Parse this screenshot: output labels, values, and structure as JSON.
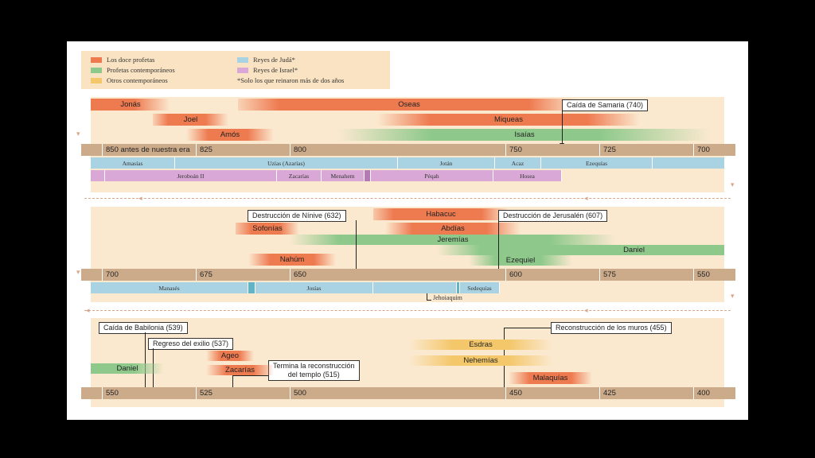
{
  "colors": {
    "doce": "#ee7a50",
    "profetas_contemporaneos": "#8ec98b",
    "otros": "#f4c76b",
    "juda": "#a9d3e3",
    "israel": "#d9a8d6",
    "ruler": "#ccab8b",
    "panel": "#fbe9cf"
  },
  "legend": {
    "doce": "Los doce profetas",
    "profetas": "Profetas contemporáneos",
    "otros": "Otros contemporáneos",
    "juda": "Reyes de Judá*",
    "israel": "Reyes de Israel*",
    "nota": "*Solo los que reinaron más de dos años"
  },
  "panel1": {
    "bars": {
      "jonas": "Jonás",
      "oseas": "Oseas",
      "joel": "Joel",
      "miqueas": "Miqueas",
      "amos": "Amós",
      "isaias": "Isaías"
    },
    "callout_samaria": "Caída de Samaria (740)",
    "ticks": [
      "850 antes de nuestra era",
      "825",
      "800",
      "750",
      "725",
      "700"
    ],
    "juda_kings": [
      "Amasías",
      "Uzías (Azarías)",
      "Jotán",
      "Acaz",
      "Ezequías"
    ],
    "israel_kings": [
      "Jeroboán II",
      "Zacarías",
      "Menahem",
      "Péqah",
      "Hosea"
    ]
  },
  "panel2": {
    "bars": {
      "habacuc": "Habacuc",
      "sofonias": "Sofonías",
      "abdias": "Abdías",
      "jeremias": "Jeremías",
      "daniel": "Daniel",
      "nahum": "Nahúm",
      "ezequiel": "Ezequiel"
    },
    "callout_ninive": "Destrucción de Nínive (632)",
    "callout_jerusalen": "Destrucción de Jerusalén (607)",
    "ticks": [
      "700",
      "675",
      "650",
      "600",
      "575",
      "550"
    ],
    "juda_kings": [
      "Manasés",
      "Josías",
      "Sedequías"
    ],
    "jehoiaquim": "Jehoiaquim"
  },
  "panel3": {
    "bars": {
      "daniel": "Daniel",
      "ageo": "Ageo",
      "zacarias": "Zacarías",
      "esdras": "Esdras",
      "nehemias": "Nehemías",
      "malaquias": "Malaquías"
    },
    "callout_babilonia": "Caída de Babilonia (539)",
    "callout_exilio": "Regreso del exilio (537)",
    "callout_templo_1": "Termina la reconstrucción",
    "callout_templo_2": "del templo (515)",
    "callout_muros": "Reconstrucción de los muros (455)",
    "ticks": [
      "550",
      "525",
      "500",
      "450",
      "425",
      "400"
    ]
  }
}
